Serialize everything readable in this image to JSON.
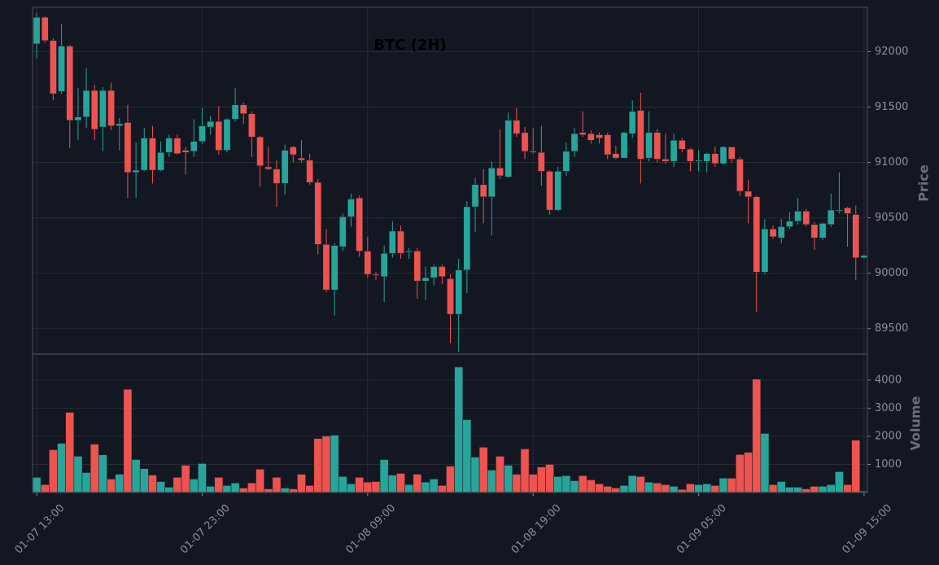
{
  "chart_data": {
    "type": "candlestick",
    "title": "BTC (2H)",
    "ylabel": "Price",
    "volume_label": "Volume",
    "up_color": "#26a69a",
    "down_color": "#ef5350",
    "grid": true,
    "xlim": [
      -0.5,
      100.4
    ],
    "xticks": [
      {
        "value": 0,
        "label": "01-07 13:00"
      },
      {
        "value": 20,
        "label": "01-07 23:00"
      },
      {
        "value": 40,
        "label": "01-08 09:00"
      },
      {
        "value": 60,
        "label": "01-08 19:00"
      },
      {
        "value": 80,
        "label": "01-09 05:00"
      },
      {
        "value": 100,
        "label": "01-09 15:00"
      }
    ],
    "ylim": [
      89270,
      92400
    ],
    "yticks": [
      89500,
      90000,
      90500,
      91000,
      91500,
      92000
    ],
    "volume_ylim": [
      0,
      4920
    ],
    "volume_yticks": [
      1000,
      2000,
      3000,
      4000
    ],
    "open": [
      92070,
      92310,
      92100,
      91640,
      92050,
      91380,
      91410,
      91650,
      91320,
      91650,
      91330,
      91360,
      90910,
      90930,
      91220,
      90930,
      91090,
      91220,
      91110,
      91100,
      91190,
      91320,
      91370,
      91110,
      91390,
      91520,
      91440,
      91230,
      90960,
      90940,
      90810,
      91140,
      91040,
      91020,
      90820,
      90260,
      89850,
      90240,
      90510,
      90680,
      90200,
      89990,
      89970,
      90180,
      90380,
      90190,
      90200,
      89930,
      89960,
      90060,
      89950,
      89630,
      90030,
      90600,
      90800,
      90690,
      90950,
      90870,
      91380,
      91270,
      91100,
      91090,
      90920,
      90570,
      90920,
      91100,
      91270,
      91260,
      91250,
      91250,
      91080,
      91040,
      91260,
      91470,
      91040,
      91270,
      91030,
      91010,
      91200,
      91120,
      91010,
      91010,
      91080,
      90990,
      91140,
      91030,
      90740,
      90690,
      90010,
      90400,
      90320,
      90420,
      90470,
      90560,
      90440,
      90320,
      90440,
      90560,
      90590,
      90530,
      90140
    ],
    "high": [
      92350,
      92320,
      92120,
      92250,
      92060,
      91670,
      91850,
      91700,
      91680,
      91720,
      91400,
      91520,
      91180,
      91310,
      91330,
      91190,
      91250,
      91250,
      91140,
      91390,
      91490,
      91420,
      91510,
      91400,
      91670,
      91540,
      91460,
      91240,
      91140,
      91020,
      91160,
      91150,
      91200,
      91080,
      90850,
      90400,
      90270,
      90540,
      90720,
      90700,
      90330,
      90010,
      90250,
      90470,
      90430,
      90230,
      90230,
      90060,
      90080,
      90080,
      89990,
      90130,
      90650,
      90860,
      90940,
      91010,
      91300,
      91450,
      91490,
      91320,
      91310,
      91330,
      90930,
      90960,
      91180,
      91310,
      91460,
      91290,
      91270,
      91270,
      91150,
      91280,
      91560,
      91630,
      91460,
      91300,
      91260,
      91260,
      91220,
      91130,
      91110,
      91090,
      91140,
      91150,
      91140,
      91050,
      90840,
      90700,
      90490,
      90430,
      90490,
      90550,
      90680,
      90580,
      90460,
      90460,
      90720,
      90910,
      90600,
      90610,
      90170
    ],
    "low": [
      91940,
      92080,
      91560,
      91620,
      91130,
      91200,
      91310,
      91200,
      91100,
      91290,
      91110,
      90680,
      90680,
      90920,
      90810,
      90920,
      91050,
      91070,
      90890,
      91050,
      91170,
      91250,
      91070,
      91090,
      91370,
      91350,
      91050,
      90780,
      90930,
      90600,
      90710,
      91000,
      91000,
      90800,
      90170,
      89830,
      89620,
      90200,
      90420,
      90150,
      89960,
      89940,
      89740,
      90140,
      90130,
      90130,
      89770,
      89760,
      89890,
      89900,
      89370,
      89290,
      89820,
      90370,
      90450,
      90340,
      90850,
      90860,
      91230,
      91030,
      91080,
      90790,
      90530,
      90560,
      90880,
      91050,
      91230,
      91170,
      91170,
      91030,
      91030,
      91040,
      91220,
      90810,
      91010,
      91000,
      90990,
      90960,
      91090,
      90920,
      90920,
      90910,
      90960,
      90980,
      91000,
      90700,
      90450,
      89650,
      89990,
      90310,
      90270,
      90400,
      90440,
      90420,
      90210,
      90300,
      90420,
      90540,
      90240,
      89940,
      90130
    ],
    "close": [
      92310,
      92100,
      91620,
      92050,
      91380,
      91410,
      91650,
      91300,
      91650,
      91330,
      91350,
      90910,
      90930,
      91220,
      90930,
      91090,
      91220,
      91080,
      91090,
      91190,
      91330,
      91370,
      91110,
      91390,
      91520,
      91440,
      91230,
      90970,
      90940,
      90810,
      91110,
      91070,
      91020,
      90820,
      90260,
      89850,
      90250,
      90510,
      90670,
      90200,
      89990,
      89980,
      90180,
      90380,
      90180,
      90200,
      89930,
      89960,
      90060,
      89970,
      89630,
      90030,
      90600,
      90800,
      90690,
      90950,
      90880,
      91380,
      91260,
      91100,
      91090,
      90920,
      90570,
      90920,
      91100,
      91260,
      91250,
      91200,
      91220,
      91070,
      91040,
      91270,
      91460,
      91030,
      91270,
      91030,
      91010,
      91200,
      91120,
      91010,
      91020,
      91080,
      90990,
      91140,
      91030,
      90740,
      90690,
      90010,
      90400,
      90330,
      90420,
      90470,
      90560,
      90440,
      90320,
      90450,
      90570,
      90570,
      90540,
      90140,
      90160
    ],
    "volume": [
      540,
      280,
      1520,
      1750,
      2850,
      1290,
      710,
      1720,
      1340,
      480,
      650,
      3670,
      1170,
      850,
      620,
      390,
      190,
      540,
      970,
      480,
      1030,
      220,
      540,
      250,
      340,
      160,
      340,
      830,
      130,
      540,
      160,
      130,
      650,
      250,
      1920,
      2010,
      2040,
      570,
      310,
      540,
      370,
      390,
      1170,
      620,
      680,
      280,
      650,
      370,
      480,
      250,
      940,
      4460,
      2590,
      1260,
      1610,
      800,
      1290,
      970,
      650,
      1550,
      650,
      910,
      1000,
      570,
      600,
      420,
      600,
      450,
      310,
      220,
      160,
      250,
      600,
      570,
      370,
      340,
      280,
      220,
      110,
      310,
      280,
      310,
      250,
      510,
      510,
      1350,
      1430,
      4030,
      2100,
      280,
      390,
      190,
      190,
      130,
      220,
      220,
      280,
      740,
      280,
      1860,
      50
    ]
  }
}
